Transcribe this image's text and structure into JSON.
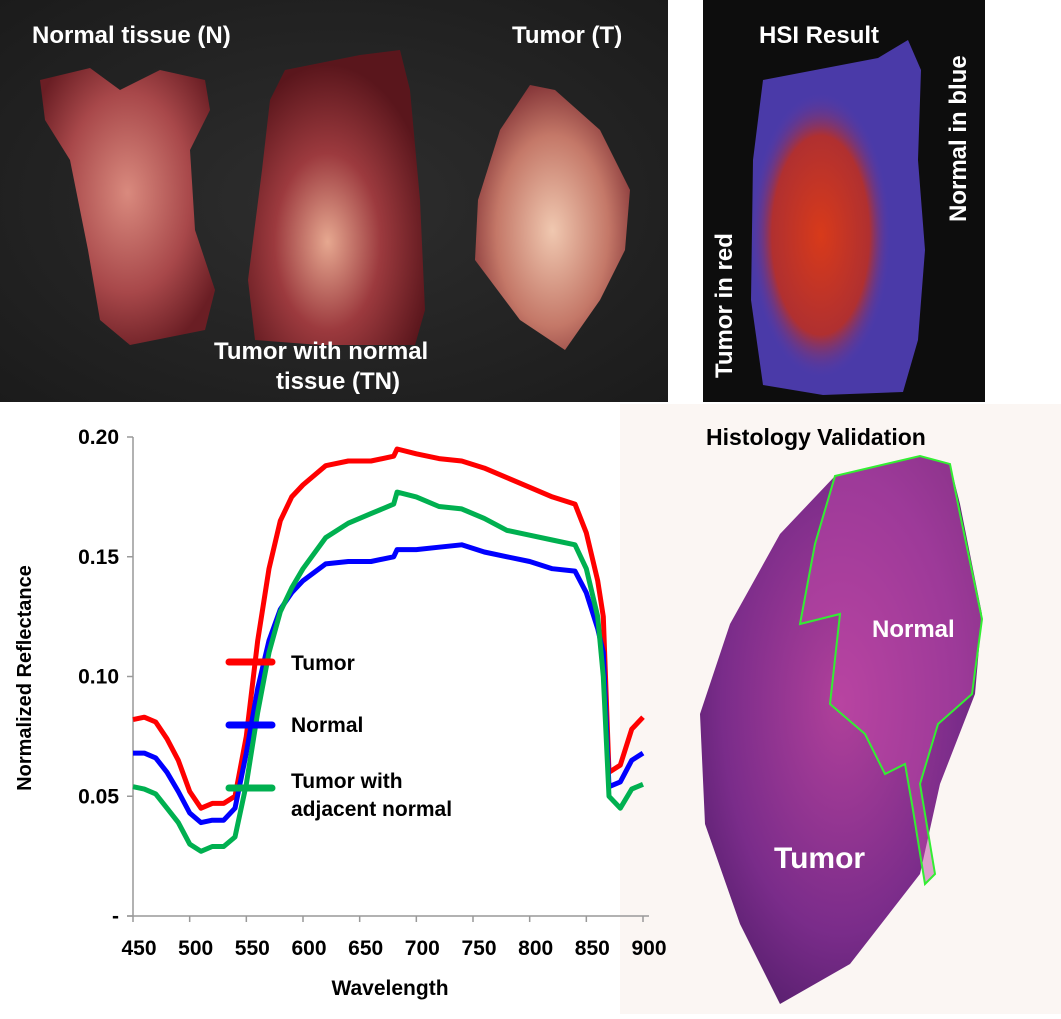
{
  "photo": {
    "label_normal": "Normal tissue (N)",
    "label_tumor": "Tumor (T)",
    "label_tn_line1": "Tumor with normal",
    "label_tn_line2": "tissue (TN)"
  },
  "hsi": {
    "title": "HSI Result",
    "label_tumor": "Tumor in red",
    "label_normal": "Normal in blue"
  },
  "histology": {
    "title": "Histology Validation",
    "label_normal": "Normal",
    "label_tumor": "Tumor"
  },
  "chart_data": {
    "type": "line",
    "title": "",
    "xlabel": "Wavelength",
    "ylabel": "Normalized Reflectance",
    "xlim": [
      450,
      900
    ],
    "ylim": [
      0,
      0.2
    ],
    "xticks": [
      "450",
      "500",
      "550",
      "600",
      "650",
      "700",
      "750",
      "800",
      "850",
      "900"
    ],
    "yticks": [
      "-",
      "0.05",
      "0.10",
      "0.15",
      "0.20"
    ],
    "ytick_values": [
      0,
      0.05,
      0.1,
      0.15,
      0.2
    ],
    "xtick_values": [
      450,
      500,
      550,
      600,
      650,
      700,
      750,
      800,
      850,
      900
    ],
    "legend_position": "center",
    "x": [
      450,
      460,
      470,
      480,
      490,
      500,
      510,
      520,
      530,
      540,
      550,
      560,
      570,
      580,
      590,
      600,
      620,
      640,
      660,
      680,
      683,
      700,
      720,
      740,
      760,
      780,
      800,
      820,
      840,
      850,
      860,
      865,
      870,
      880,
      890,
      900
    ],
    "series": [
      {
        "name": "Tumor",
        "color": "#ff0000",
        "values": [
          0.082,
          0.083,
          0.081,
          0.074,
          0.065,
          0.052,
          0.045,
          0.047,
          0.047,
          0.05,
          0.075,
          0.115,
          0.145,
          0.165,
          0.175,
          0.18,
          0.188,
          0.19,
          0.19,
          0.192,
          0.195,
          0.193,
          0.191,
          0.19,
          0.187,
          0.183,
          0.179,
          0.175,
          0.172,
          0.16,
          0.14,
          0.125,
          0.06,
          0.063,
          0.078,
          0.083
        ]
      },
      {
        "name": "Normal",
        "color": "#0000ff",
        "values": [
          0.068,
          0.068,
          0.066,
          0.06,
          0.052,
          0.043,
          0.039,
          0.04,
          0.04,
          0.045,
          0.068,
          0.095,
          0.115,
          0.128,
          0.135,
          0.14,
          0.147,
          0.148,
          0.148,
          0.15,
          0.153,
          0.153,
          0.154,
          0.155,
          0.152,
          0.15,
          0.148,
          0.145,
          0.144,
          0.135,
          0.12,
          0.11,
          0.054,
          0.056,
          0.065,
          0.068
        ]
      },
      {
        "name": "Tumor with adjacent normal",
        "legend_line1": "Tumor with",
        "legend_line2": "adjacent normal",
        "color": "#00b050",
        "values": [
          0.054,
          0.053,
          0.051,
          0.045,
          0.039,
          0.03,
          0.027,
          0.029,
          0.029,
          0.033,
          0.055,
          0.085,
          0.11,
          0.127,
          0.137,
          0.145,
          0.158,
          0.164,
          0.168,
          0.172,
          0.177,
          0.175,
          0.171,
          0.17,
          0.166,
          0.161,
          0.159,
          0.157,
          0.155,
          0.145,
          0.125,
          0.1,
          0.05,
          0.045,
          0.053,
          0.055
        ]
      }
    ]
  }
}
